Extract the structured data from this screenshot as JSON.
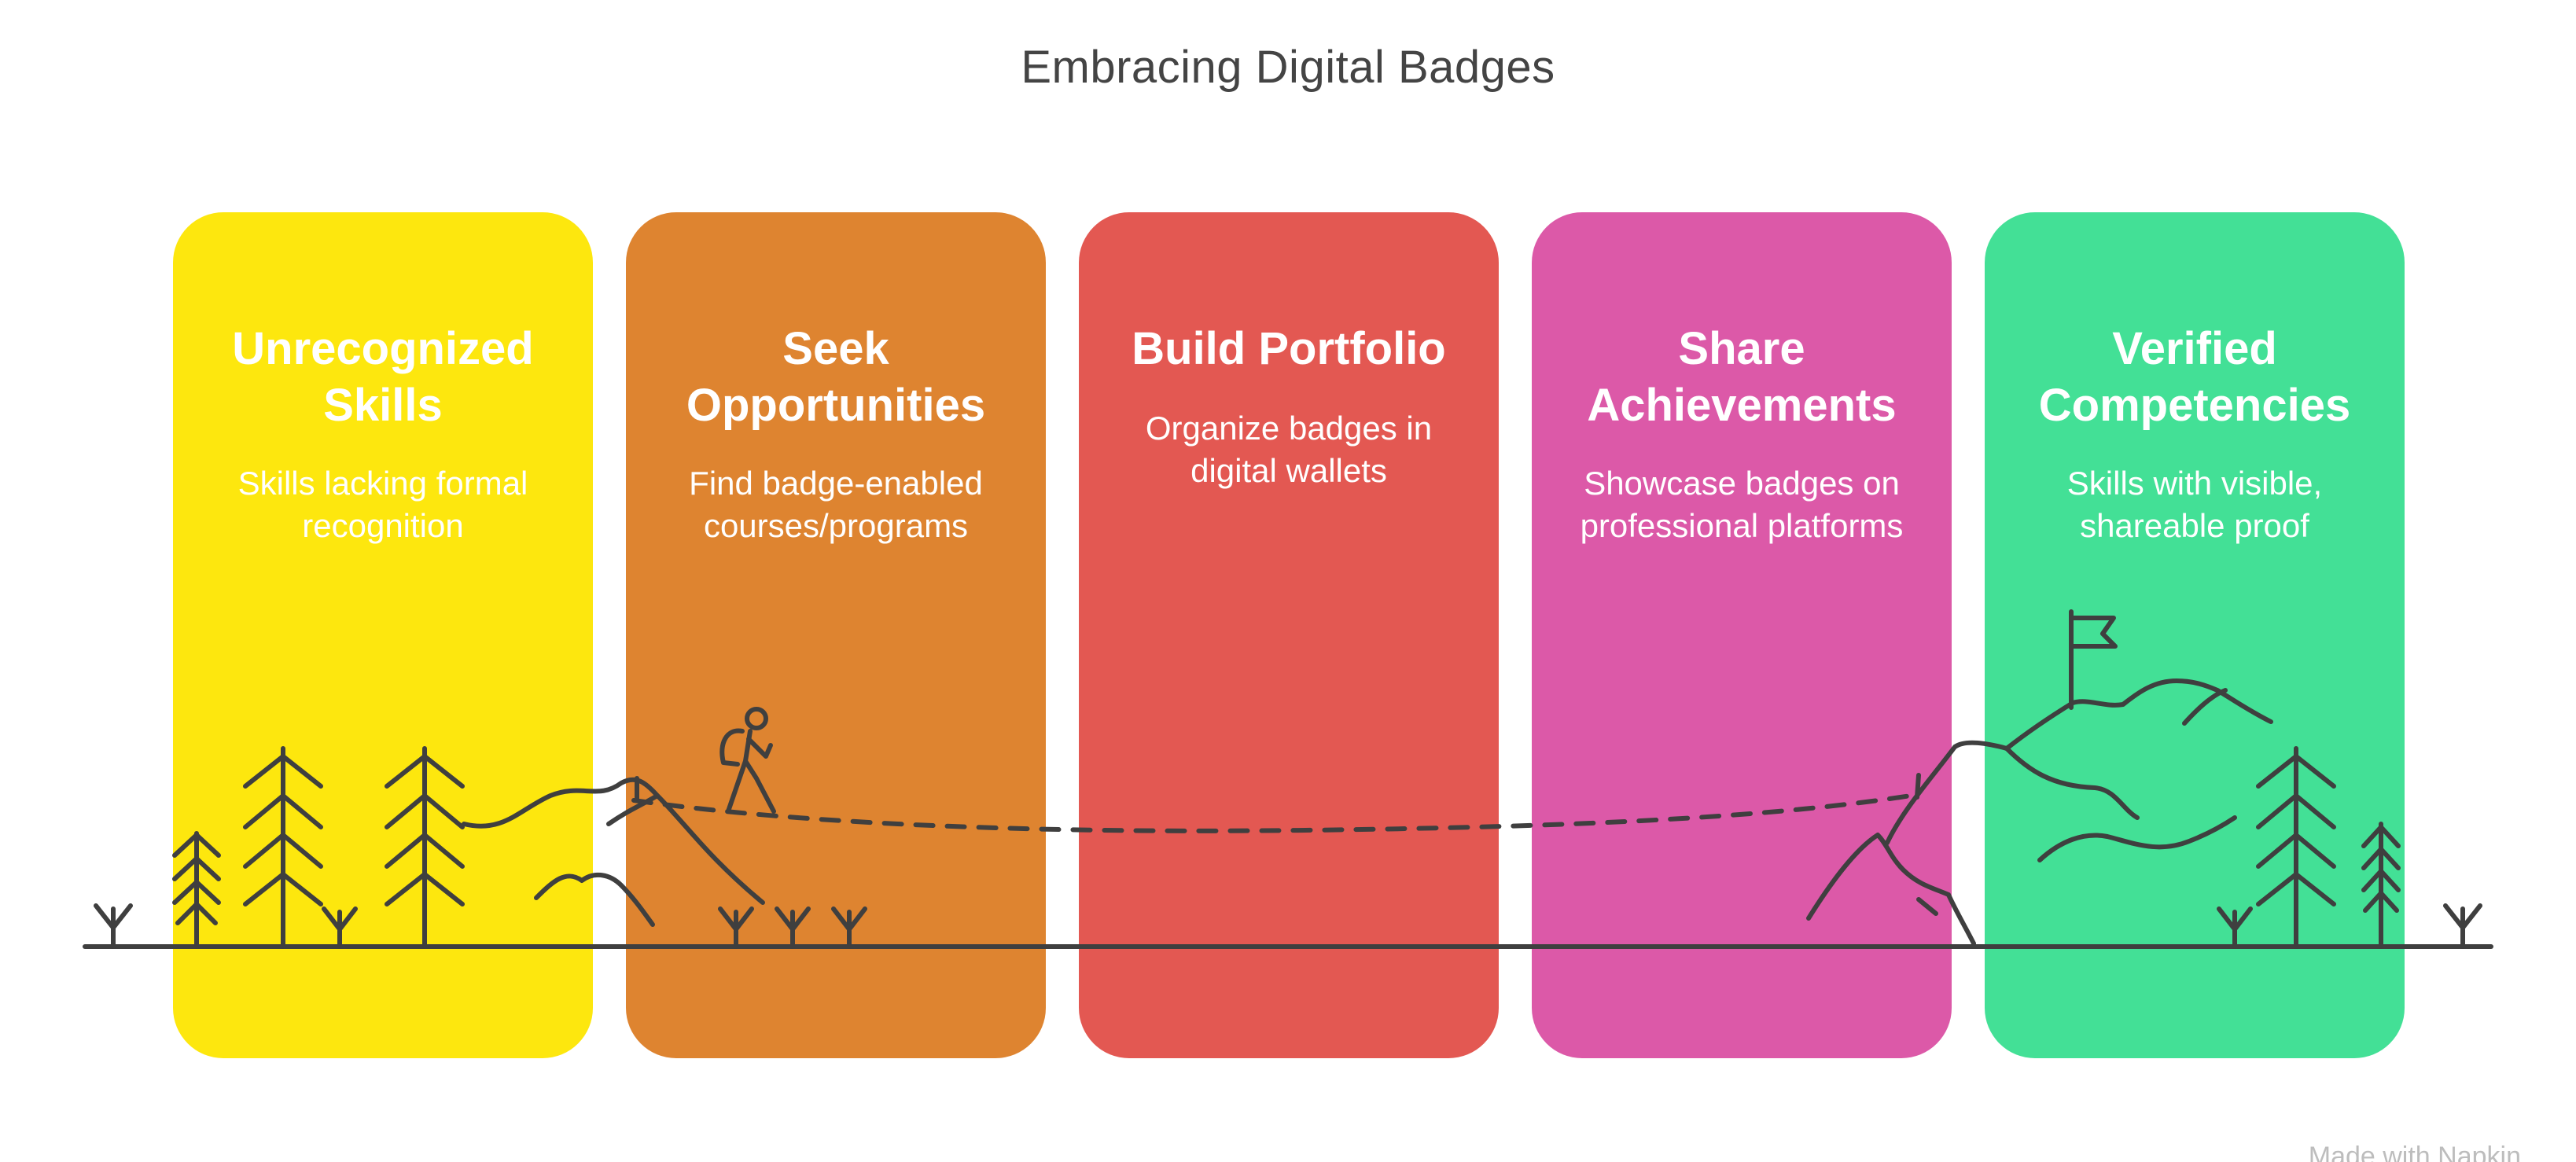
{
  "title": "Embracing Digital Badges",
  "stages": [
    {
      "heading_lines": [
        "Unrecognized",
        "Skills"
      ],
      "text_lines": [
        "Skills lacking formal",
        "recognition"
      ],
      "color": "#FDE70E"
    },
    {
      "heading_lines": [
        "Seek",
        "Opportunities"
      ],
      "text_lines": [
        "Find badge-enabled",
        "courses/programs"
      ],
      "color": "#DE8430"
    },
    {
      "heading_lines": [
        "Build Portfolio"
      ],
      "text_lines": [
        "Organize badges in",
        "digital wallets"
      ],
      "color": "#E35852"
    },
    {
      "heading_lines": [
        "Share",
        "Achievements"
      ],
      "text_lines": [
        "Showcase badges on",
        "professional platforms"
      ],
      "color": "#DC59A8"
    },
    {
      "heading_lines": [
        "Verified",
        "Competencies"
      ],
      "text_lines": [
        "Skills with visible,",
        "shareable proof"
      ],
      "color": "#43E096"
    }
  ],
  "icons": {
    "hiker": "hiker-icon",
    "flag": "flag-icon",
    "tree": "tree-icon",
    "mountain": "mountain-icon"
  },
  "line_color": "#3f3f3f",
  "footer": "Made with Napkin"
}
